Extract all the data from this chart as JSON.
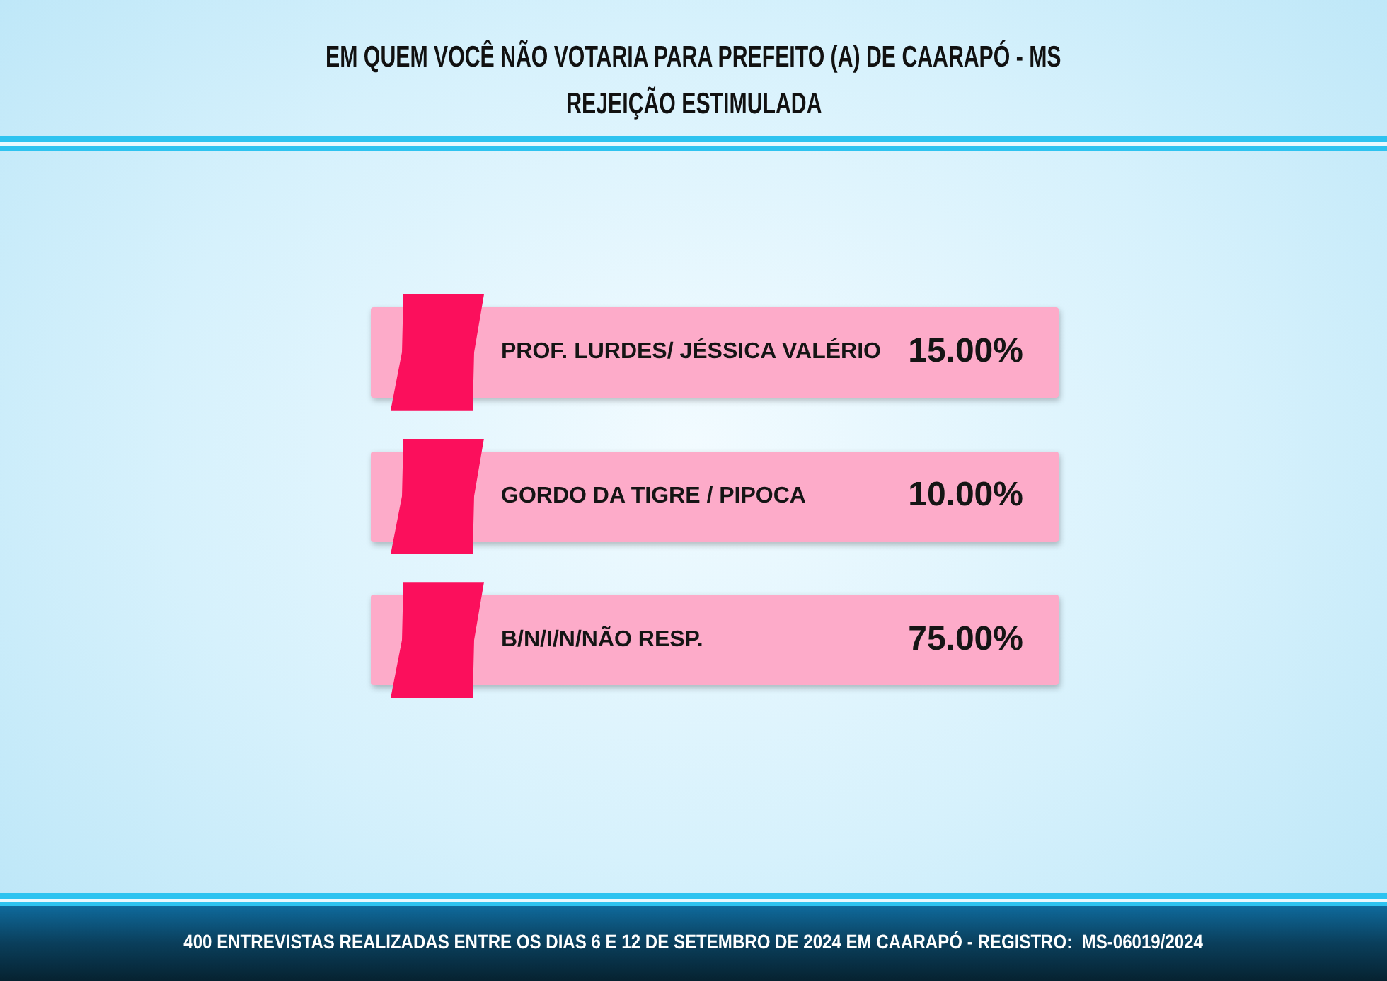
{
  "chart_data": {
    "type": "other",
    "title": "EM QUEM VOCÊ NÃO VOTARIA PARA PREFEITO (A) DE CAARAPÓ - MS",
    "subtitle": "REJEIÇÃO ESTIMULADA",
    "categories": [
      "PROF. LURDES/ JÉSSICA VALÉRIO",
      "GORDO DA TIGRE / PIPOCA",
      "B/N/I/N/NÃO RESP."
    ],
    "values": [
      15,
      10,
      75
    ],
    "value_labels": [
      "15.00%",
      "10.00%",
      "75.00%"
    ],
    "annotations": [
      "400 ENTREVISTAS REALIZADAS ENTRE OS DIAS 6 E 12 DE SETEMBRO DE 2024 EM CAARAPÓ - REGISTRO:  MS-06019/2024"
    ]
  }
}
